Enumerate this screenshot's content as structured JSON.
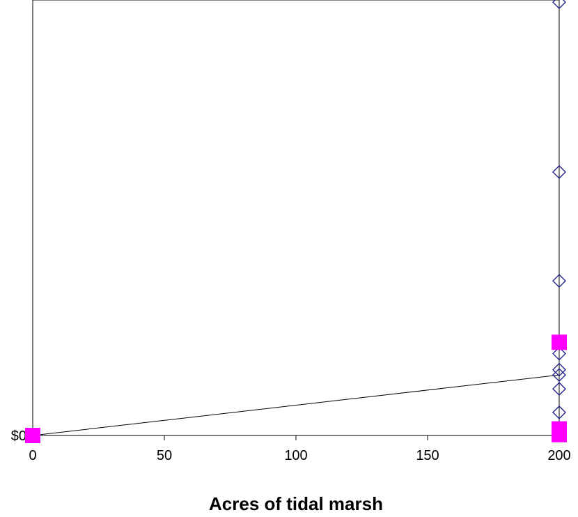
{
  "chart_data": {
    "type": "scatter",
    "title": "",
    "xlabel": "Acres of tidal marsh",
    "ylabel": "",
    "xlim": [
      0,
      200
    ],
    "x_ticks": [
      0,
      50,
      100,
      150,
      200
    ],
    "x_tick_labels": [
      "0",
      "50",
      "100",
      "150",
      "200"
    ],
    "ylim": [
      0,
      100
    ],
    "y_ticks": [
      0
    ],
    "y_tick_labels": [
      "$0"
    ],
    "grid": false,
    "legend": "none",
    "series": [
      {
        "marker": "open-diamond",
        "color": "#1a1a8c",
        "points": [
          {
            "x": 200,
            "y": 99.5
          },
          {
            "x": 200,
            "y": 60.5
          },
          {
            "x": 200,
            "y": 35.5
          },
          {
            "x": 200,
            "y": 18.8
          },
          {
            "x": 200,
            "y": 15.1
          },
          {
            "x": 200,
            "y": 13.9
          },
          {
            "x": 200,
            "y": 10.7
          },
          {
            "x": 200,
            "y": 5.3
          }
        ]
      },
      {
        "marker": "filled-square",
        "color": "#ff00ff",
        "points": [
          {
            "x": 0,
            "y": 0.0
          },
          {
            "x": 200,
            "y": 21.4
          },
          {
            "x": 200,
            "y": 1.5
          },
          {
            "x": 200,
            "y": 0.2
          }
        ]
      },
      {
        "marker": "none",
        "line": true,
        "color": "#000000",
        "points": [
          {
            "x": 0,
            "y": 0.0
          },
          {
            "x": 200,
            "y": 13.9
          }
        ]
      }
    ]
  }
}
